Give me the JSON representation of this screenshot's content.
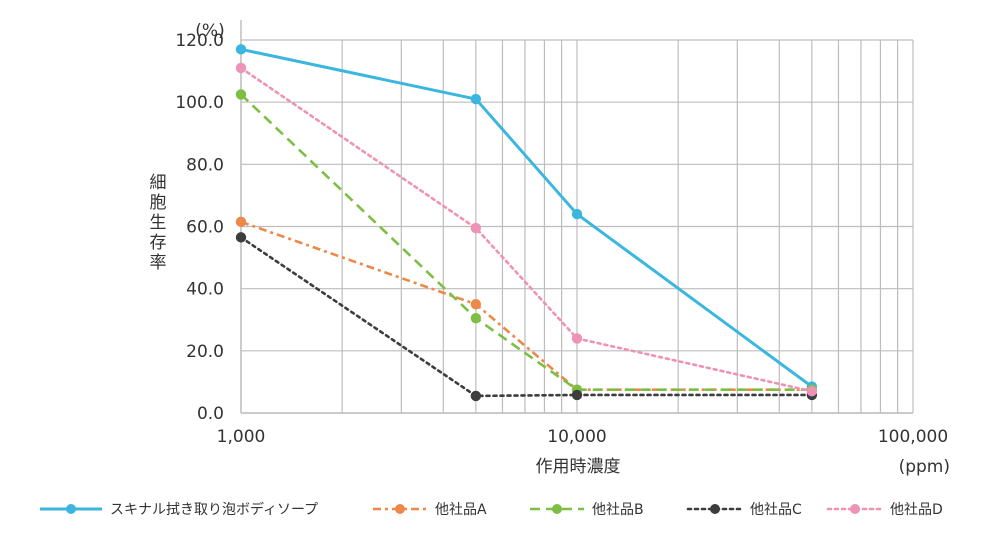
{
  "chart_data": {
    "type": "line",
    "x_scale": "log",
    "x": [
      1000,
      5000,
      10000,
      50000
    ],
    "xlim": [
      1000,
      100000
    ],
    "ylim": [
      0,
      120
    ],
    "y_ticks": [
      0,
      20,
      40,
      60,
      80,
      100,
      120
    ],
    "y_tick_labels": [
      "0.0",
      "20.0",
      "40.0",
      "60.0",
      "80.0",
      "100.0",
      "120.0"
    ],
    "x_tick_labels": [
      "1,000",
      "10,000",
      "100,000"
    ],
    "x_tick_values": [
      1000,
      10000,
      100000
    ],
    "y_unit": "(%)",
    "x_unit": "(ppm)",
    "ylabel": "細胞生存率",
    "xlabel": "作用時濃度",
    "grid": true,
    "legend_position": "bottom",
    "series": [
      {
        "name": "スキナル拭き取り泡ボディソープ",
        "values": [
          117,
          101,
          64,
          8.5
        ],
        "color": "#3bb6de",
        "dash": "solid"
      },
      {
        "name": "他社品A",
        "values": [
          61.5,
          35,
          7.5,
          7.5
        ],
        "color": "#ec8849",
        "dash": "dashdot"
      },
      {
        "name": "他社品B",
        "values": [
          102.5,
          30.5,
          7.5,
          7.5
        ],
        "color": "#7dbf44",
        "dash": "dashed"
      },
      {
        "name": "他社品C",
        "values": [
          56.5,
          5.5,
          5.8,
          5.8
        ],
        "color": "#3d3d3d",
        "dash": "dotted"
      },
      {
        "name": "他社品D",
        "values": [
          111,
          59.5,
          24,
          7
        ],
        "color": "#ee92b6",
        "dash": "dotted"
      }
    ]
  }
}
